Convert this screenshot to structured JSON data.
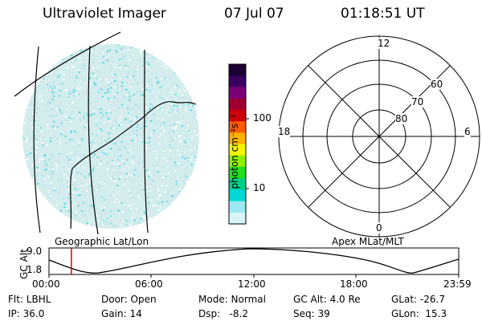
{
  "header": {
    "title": "Ultraviolet Imager",
    "date": "07 Jul 07",
    "time": "01:18:51 UT"
  },
  "colorbar": {
    "label": "photon cm⁻²s⁻¹",
    "ticks": [
      "100",
      "10"
    ],
    "scale": "log",
    "colors": [
      "#1a0033",
      "#3a0060",
      "#7a0078",
      "#a00030",
      "#d0000a",
      "#ff5a00",
      "#ffb000",
      "#f4f400",
      "#90f000",
      "#20e020",
      "#00d08a",
      "#00d8d8",
      "#9ae8f0",
      "#d8f4f6"
    ]
  },
  "captions": {
    "left": "Geographic Lat/Lon",
    "right": "Apex MLat/MLT"
  },
  "polar": {
    "mlt_labels": [
      "12",
      "18",
      "6",
      "0"
    ],
    "lat_labels": [
      "60",
      "70",
      "80"
    ]
  },
  "altitude_plot": {
    "ylabel": "GC Alt",
    "yticks": [
      "9.0",
      "1.8"
    ],
    "xticks": [
      "00:00",
      "06:00",
      "12:00",
      "18:00",
      "23:59"
    ],
    "marker_time_hours": 1.31,
    "marker_color": "#e00000"
  },
  "info": {
    "filter": "Flt: LBHL",
    "ip": "IP: 36.0",
    "door": "Door: Open",
    "gain": "Gain: 14",
    "mode": "Mode: Normal",
    "dsp": "Dsp:   -8.2",
    "gc_alt": "GC Alt: 4.0 Re",
    "seq": "Seq: 39",
    "glat": "GLat: -26.7",
    "glon": "GLon:  15.3"
  }
}
